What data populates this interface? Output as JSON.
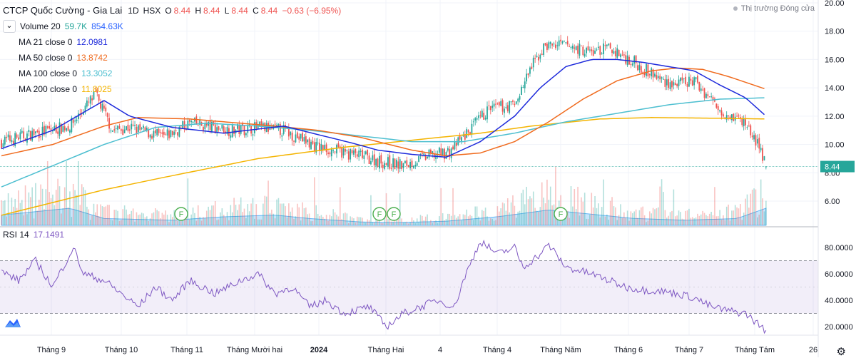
{
  "header": {
    "symbol_title": "CTCP Quốc Cường - Gia Lai",
    "interval": "1D",
    "exchange": "HSX",
    "ohlc": {
      "o_label": "O",
      "o": "8.44",
      "h_label": "H",
      "h": "8.44",
      "l_label": "L",
      "l": "8.44",
      "c_label": "C",
      "c": "8.44",
      "change": "−0.63 (−6.95%)"
    },
    "market_status": "Thị trường Đóng cửa"
  },
  "indicators": [
    {
      "label": "Volume 20",
      "values": [
        "59.7K",
        "854.63K"
      ],
      "colors": [
        "#26a69a",
        "#2962ff"
      ]
    },
    {
      "label": "MA 21 close 0",
      "value": "12.0981",
      "color": "#1e2adb"
    },
    {
      "label": "MA 50 close 0",
      "value": "13.8742",
      "color": "#f06b1e"
    },
    {
      "label": "MA 100 close 0",
      "value": "13.3052",
      "color": "#4dbfd0"
    },
    {
      "label": "MA 200 close 0",
      "value": "11.8025",
      "color": "#f4b400"
    }
  ],
  "rsi": {
    "label": "RSI 14",
    "value": "17.1491",
    "color": "#7e57c2"
  },
  "price_axis": {
    "ticks": [
      "20.00",
      "18.00",
      "16.00",
      "14.00",
      "12.00",
      "10.00",
      "8.00",
      "6.00"
    ],
    "current_price_label": "8.44"
  },
  "rsi_axis": {
    "ticks": [
      "80.0000",
      "60.0000",
      "40.0000",
      "20.0000"
    ]
  },
  "time_axis": {
    "ticks": [
      "Tháng 9",
      "Tháng 10",
      "Tháng 11",
      "Tháng Mười hai",
      "2024",
      "Tháng Hai",
      "4",
      "Tháng 4",
      "Tháng Năm",
      "Tháng 6",
      "Tháng 7",
      "Tháng Tám",
      "26"
    ]
  },
  "events": [
    {
      "label": "F"
    },
    {
      "label": "F"
    },
    {
      "label": "F"
    },
    {
      "label": "F"
    }
  ],
  "chart_data": {
    "type": "line",
    "price_range": [
      5,
      20
    ],
    "rsi_range": [
      10,
      90
    ],
    "rsi_band": [
      30,
      70
    ],
    "x_range": [
      0,
      470
    ],
    "close_keypoints": [
      [
        0,
        10.2
      ],
      [
        20,
        10.8
      ],
      [
        40,
        11.3
      ],
      [
        55,
        13.5
      ],
      [
        65,
        11.0
      ],
      [
        75,
        11.2
      ],
      [
        95,
        10.5
      ],
      [
        110,
        11.5
      ],
      [
        135,
        11.0
      ],
      [
        150,
        11.2
      ],
      [
        165,
        11.0
      ],
      [
        185,
        9.8
      ],
      [
        210,
        9.2
      ],
      [
        225,
        8.7
      ],
      [
        235,
        8.5
      ],
      [
        250,
        9.2
      ],
      [
        262,
        9.5
      ],
      [
        270,
        10.5
      ],
      [
        285,
        12.5
      ],
      [
        300,
        12.8
      ],
      [
        310,
        15.5
      ],
      [
        318,
        17.0
      ],
      [
        330,
        17.0
      ],
      [
        345,
        16.5
      ],
      [
        355,
        16.8
      ],
      [
        370,
        15.8
      ],
      [
        385,
        14.6
      ],
      [
        395,
        14.2
      ],
      [
        405,
        14.5
      ],
      [
        420,
        12.5
      ],
      [
        428,
        12.0
      ],
      [
        435,
        11.5
      ],
      [
        440,
        10.5
      ],
      [
        445,
        9.2
      ],
      [
        447,
        8.44
      ]
    ],
    "ma21_keypoints": [
      [
        0,
        9.7
      ],
      [
        30,
        11.0
      ],
      [
        60,
        13.1
      ],
      [
        75,
        12.0
      ],
      [
        100,
        11.2
      ],
      [
        130,
        10.8
      ],
      [
        165,
        11.3
      ],
      [
        185,
        10.7
      ],
      [
        205,
        10.1
      ],
      [
        220,
        9.6
      ],
      [
        240,
        9.3
      ],
      [
        260,
        9.1
      ],
      [
        280,
        10.2
      ],
      [
        300,
        12.0
      ],
      [
        315,
        14.0
      ],
      [
        330,
        15.5
      ],
      [
        345,
        16.0
      ],
      [
        360,
        16.0
      ],
      [
        375,
        15.8
      ],
      [
        390,
        15.5
      ],
      [
        405,
        15.2
      ],
      [
        420,
        14.2
      ],
      [
        435,
        13.3
      ],
      [
        447,
        12.0
      ]
    ],
    "ma50_keypoints": [
      [
        0,
        9.2
      ],
      [
        30,
        10.0
      ],
      [
        60,
        11.3
      ],
      [
        80,
        11.9
      ],
      [
        110,
        11.8
      ],
      [
        130,
        11.6
      ],
      [
        160,
        11.3
      ],
      [
        185,
        11.0
      ],
      [
        210,
        10.5
      ],
      [
        240,
        9.6
      ],
      [
        260,
        9.2
      ],
      [
        280,
        9.4
      ],
      [
        300,
        10.2
      ],
      [
        320,
        11.6
      ],
      [
        340,
        13.2
      ],
      [
        360,
        14.5
      ],
      [
        380,
        15.2
      ],
      [
        395,
        15.4
      ],
      [
        410,
        15.3
      ],
      [
        425,
        14.8
      ],
      [
        447,
        13.9
      ]
    ],
    "ma100_keypoints": [
      [
        0,
        7.0
      ],
      [
        30,
        8.5
      ],
      [
        60,
        10.0
      ],
      [
        90,
        11.2
      ],
      [
        120,
        11.5
      ],
      [
        150,
        11.3
      ],
      [
        180,
        11.0
      ],
      [
        210,
        10.6
      ],
      [
        240,
        10.2
      ],
      [
        270,
        10.2
      ],
      [
        300,
        10.8
      ],
      [
        330,
        11.6
      ],
      [
        360,
        12.2
      ],
      [
        390,
        12.8
      ],
      [
        420,
        13.2
      ],
      [
        447,
        13.3
      ]
    ],
    "ma200_keypoints": [
      [
        0,
        5.0
      ],
      [
        60,
        6.8
      ],
      [
        100,
        7.8
      ],
      [
        150,
        9.0
      ],
      [
        200,
        9.8
      ],
      [
        240,
        10.3
      ],
      [
        280,
        10.8
      ],
      [
        310,
        11.3
      ],
      [
        350,
        11.8
      ],
      [
        380,
        11.9
      ],
      [
        420,
        11.85
      ],
      [
        447,
        11.8
      ]
    ],
    "rsi_keypoints": [
      [
        0,
        62
      ],
      [
        10,
        55
      ],
      [
        20,
        70
      ],
      [
        30,
        50
      ],
      [
        38,
        70
      ],
      [
        42,
        80
      ],
      [
        48,
        60
      ],
      [
        60,
        55
      ],
      [
        70,
        45
      ],
      [
        80,
        35
      ],
      [
        90,
        50
      ],
      [
        100,
        40
      ],
      [
        110,
        55
      ],
      [
        125,
        45
      ],
      [
        140,
        55
      ],
      [
        150,
        60
      ],
      [
        160,
        45
      ],
      [
        170,
        50
      ],
      [
        180,
        35
      ],
      [
        190,
        40
      ],
      [
        200,
        30
      ],
      [
        215,
        35
      ],
      [
        225,
        20
      ],
      [
        235,
        30
      ],
      [
        245,
        35
      ],
      [
        255,
        40
      ],
      [
        265,
        35
      ],
      [
        270,
        55
      ],
      [
        280,
        85
      ],
      [
        290,
        75
      ],
      [
        300,
        80
      ],
      [
        305,
        65
      ],
      [
        315,
        75
      ],
      [
        320,
        82
      ],
      [
        330,
        65
      ],
      [
        345,
        60
      ],
      [
        355,
        55
      ],
      [
        365,
        50
      ],
      [
        375,
        48
      ],
      [
        385,
        47
      ],
      [
        395,
        45
      ],
      [
        405,
        42
      ],
      [
        415,
        35
      ],
      [
        425,
        32
      ],
      [
        435,
        30
      ],
      [
        447,
        17
      ]
    ],
    "volume_keypoints": [
      [
        0,
        0.3
      ],
      [
        40,
        0.5
      ],
      [
        60,
        0.2
      ],
      [
        100,
        0.15
      ],
      [
        130,
        0.25
      ],
      [
        160,
        0.3
      ],
      [
        180,
        0.2
      ],
      [
        210,
        0.1
      ],
      [
        230,
        0.08
      ],
      [
        260,
        0.12
      ],
      [
        290,
        0.25
      ],
      [
        320,
        0.45
      ],
      [
        340,
        0.35
      ],
      [
        370,
        0.2
      ],
      [
        400,
        0.15
      ],
      [
        430,
        0.2
      ],
      [
        447,
        0.5
      ]
    ]
  }
}
